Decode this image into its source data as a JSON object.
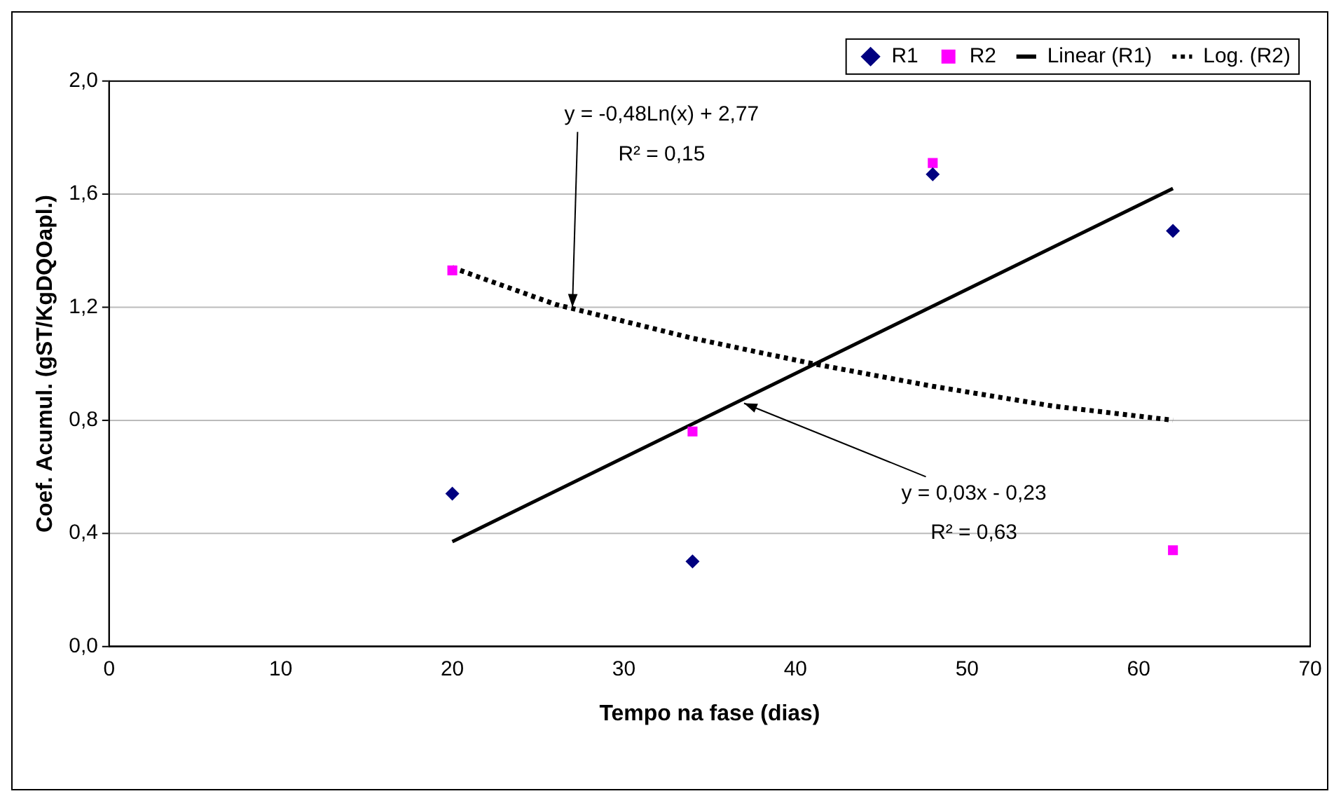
{
  "chart_data": {
    "type": "scatter",
    "xlabel": "Tempo na fase (dias)",
    "ylabel": "Coef. Acumul. (gST/KgDQOapl.)",
    "series": [
      {
        "name": "R1",
        "type": "scatter",
        "marker": "diamond",
        "color": "#000080",
        "x": [
          20,
          34,
          48,
          62
        ],
        "values": [
          0.54,
          0.3,
          1.67,
          1.47
        ]
      },
      {
        "name": "R2",
        "type": "scatter",
        "marker": "square",
        "color": "#ff00ff",
        "x": [
          20,
          34,
          48,
          62
        ],
        "values": [
          1.33,
          0.76,
          1.71,
          0.34
        ]
      },
      {
        "name": "Linear (R1)",
        "type": "line",
        "marker": "none",
        "line_style": "solid",
        "color": "#000000",
        "x": [
          20,
          62
        ],
        "values": [
          0.37,
          1.62
        ]
      },
      {
        "name": "Log. (R2)",
        "type": "line",
        "marker": "none",
        "line_style": "dotted",
        "color": "#000000",
        "x": [
          20,
          26,
          30,
          34,
          41,
          48,
          55,
          62
        ],
        "values": [
          1.34,
          1.21,
          1.15,
          1.09,
          1.0,
          0.92,
          0.85,
          0.8
        ]
      }
    ],
    "xlim": [
      0,
      70
    ],
    "xticks": [
      0,
      10,
      20,
      30,
      40,
      50,
      60,
      70
    ],
    "ylim": [
      0,
      2
    ],
    "yticks": [
      {
        "value": 0,
        "label": "0,0"
      },
      {
        "value": 0.4,
        "label": "0,4"
      },
      {
        "value": 0.8,
        "label": "0,8"
      },
      {
        "value": 1.2,
        "label": "1,2"
      },
      {
        "value": 1.6,
        "label": "1,6"
      },
      {
        "value": 2,
        "label": "2,0"
      }
    ],
    "grid": "y",
    "legend": "top right",
    "annotations": [
      {
        "text": "y = -0,48Ln(x) + 2,77",
        "x": 27,
        "y": 1.2
      },
      "R² = 0,15",
      {
        "text": "y = 0,03x - 0,23",
        "x": 37,
        "y": 0.86
      },
      "R² = 0,63"
    ]
  }
}
